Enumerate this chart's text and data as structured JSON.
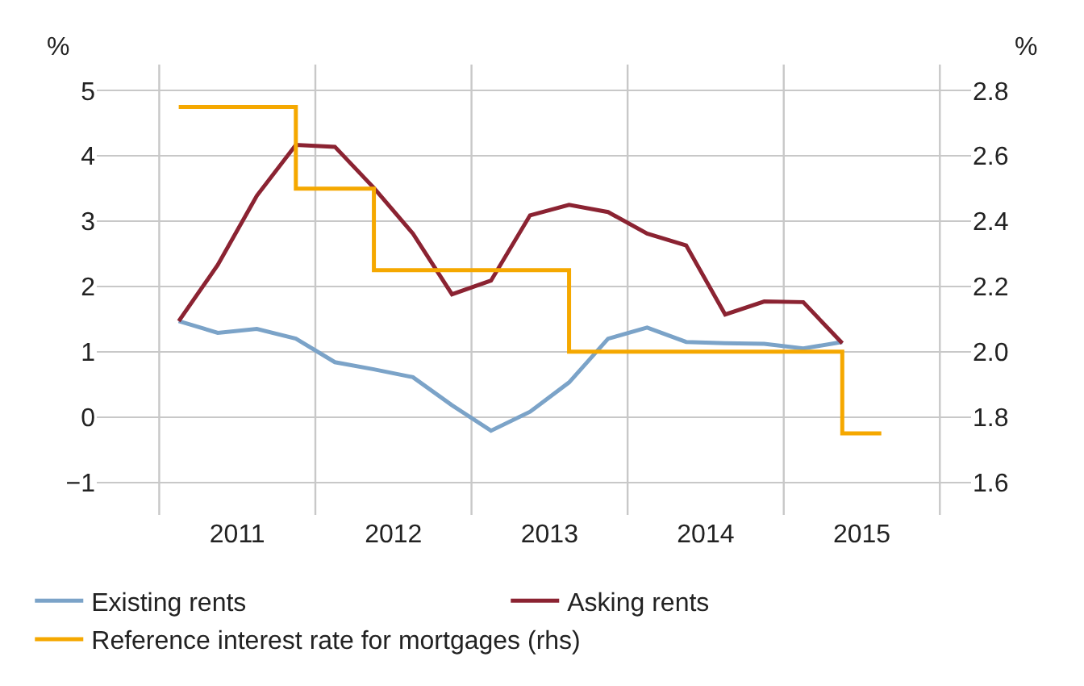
{
  "chart_data": {
    "type": "line",
    "ylabel": "%",
    "y2label": "%",
    "x": [
      2011.125,
      2011.375,
      2011.625,
      2011.875,
      2012.125,
      2012.375,
      2012.625,
      2012.875,
      2013.125,
      2013.375,
      2013.625,
      2013.875,
      2014.125,
      2014.375,
      2014.625,
      2014.875,
      2015.125,
      2015.375
    ],
    "series": [
      {
        "name": "Existing rents",
        "color": "#7ba3c8",
        "values": [
          1.47,
          1.29,
          1.35,
          1.2,
          0.84,
          0.73,
          0.61,
          0.18,
          -0.21,
          0.08,
          0.53,
          1.2,
          1.37,
          1.15,
          1.13,
          1.12,
          1.05,
          1.15
        ]
      },
      {
        "name": "Asking rents",
        "color": "#8b2332",
        "values": [
          1.47,
          2.33,
          3.39,
          4.17,
          4.14,
          3.51,
          2.81,
          1.88,
          2.09,
          3.09,
          3.25,
          3.14,
          2.81,
          2.63,
          1.57,
          1.77,
          1.76,
          1.13
        ]
      },
      {
        "name": "Reference interest rate for mortgages (rhs)",
        "type": "step",
        "axis": "y2",
        "color": "#f5a800",
        "x": [
          2011.125,
          2011.875,
          2012.375,
          2013.625,
          2015.375,
          2015.625
        ],
        "values": [
          2.75,
          2.5,
          2.25,
          2.0,
          1.75,
          1.75
        ]
      }
    ],
    "xlim": [
      2010.6,
      2016.2
    ],
    "xticks": [
      {
        "value": 2011,
        "label": null
      },
      {
        "value": 2011.5,
        "label": "2011"
      },
      {
        "value": 2012,
        "label": null
      },
      {
        "value": 2012.5,
        "label": "2012"
      },
      {
        "value": 2013,
        "label": null
      },
      {
        "value": 2013.5,
        "label": "2013"
      },
      {
        "value": 2014,
        "label": null
      },
      {
        "value": 2014.5,
        "label": "2014"
      },
      {
        "value": 2015,
        "label": null
      },
      {
        "value": 2015.5,
        "label": "2015"
      },
      {
        "value": 2016,
        "label": null
      }
    ],
    "ylim": [
      -1.5,
      5.4
    ],
    "yticks": [
      {
        "value": -1,
        "label": "−1"
      },
      0,
      1,
      2,
      3,
      4,
      5
    ],
    "y2lim": [
      1.5,
      2.88
    ],
    "y2ticks": [
      1.6,
      1.8,
      {
        "value": 2,
        "label": "2.0"
      },
      2.2,
      2.4,
      2.6,
      2.8
    ],
    "grid": true,
    "legend": "bottom",
    "marker": "none",
    "line_style": "solid"
  }
}
